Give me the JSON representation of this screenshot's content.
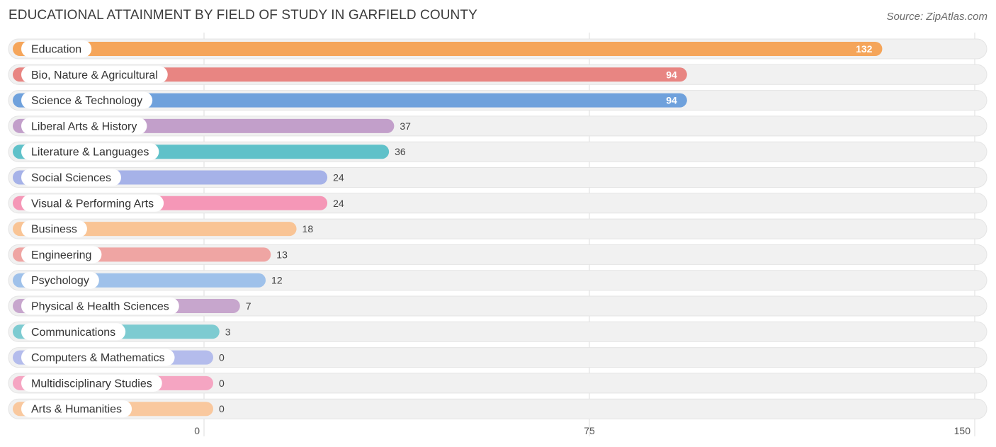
{
  "header": {
    "title": "EDUCATIONAL ATTAINMENT BY FIELD OF STUDY IN GARFIELD COUNTY",
    "source": "Source: ZipAtlas.com"
  },
  "chart_data": {
    "type": "bar",
    "orientation": "horizontal",
    "title": "EDUCATIONAL ATTAINMENT BY FIELD OF STUDY IN GARFIELD COUNTY",
    "xlabel": "",
    "ylabel": "",
    "xlim": [
      0,
      150
    ],
    "ticks": [
      0,
      75,
      150
    ],
    "tick_labels": [
      "0",
      "75",
      "150"
    ],
    "grid": true,
    "categories": [
      "Education",
      "Bio, Nature & Agricultural",
      "Science & Technology",
      "Liberal Arts & History",
      "Literature & Languages",
      "Social Sciences",
      "Visual & Performing Arts",
      "Business",
      "Engineering",
      "Psychology",
      "Physical & Health Sciences",
      "Communications",
      "Computers & Mathematics",
      "Multidisciplinary Studies",
      "Arts & Humanities"
    ],
    "values": [
      132,
      94,
      94,
      37,
      36,
      24,
      24,
      18,
      13,
      12,
      7,
      3,
      0,
      0,
      0
    ],
    "value_labels": [
      "132",
      "94",
      "94",
      "37",
      "36",
      "24",
      "24",
      "18",
      "13",
      "12",
      "7",
      "3",
      "0",
      "0",
      "0"
    ],
    "colors": [
      "#f5a55a",
      "#e88582",
      "#6fa1dc",
      "#c29fca",
      "#5fc1c9",
      "#a6b2e8",
      "#f597b7",
      "#f9c495",
      "#efa5a3",
      "#9fc1ea",
      "#c7a6cd",
      "#7dcbd1",
      "#b4bcec",
      "#f5a5c2",
      "#f9c89e"
    ],
    "track_color": "#f1f1f1",
    "grid_color": "#dcdcdc"
  }
}
